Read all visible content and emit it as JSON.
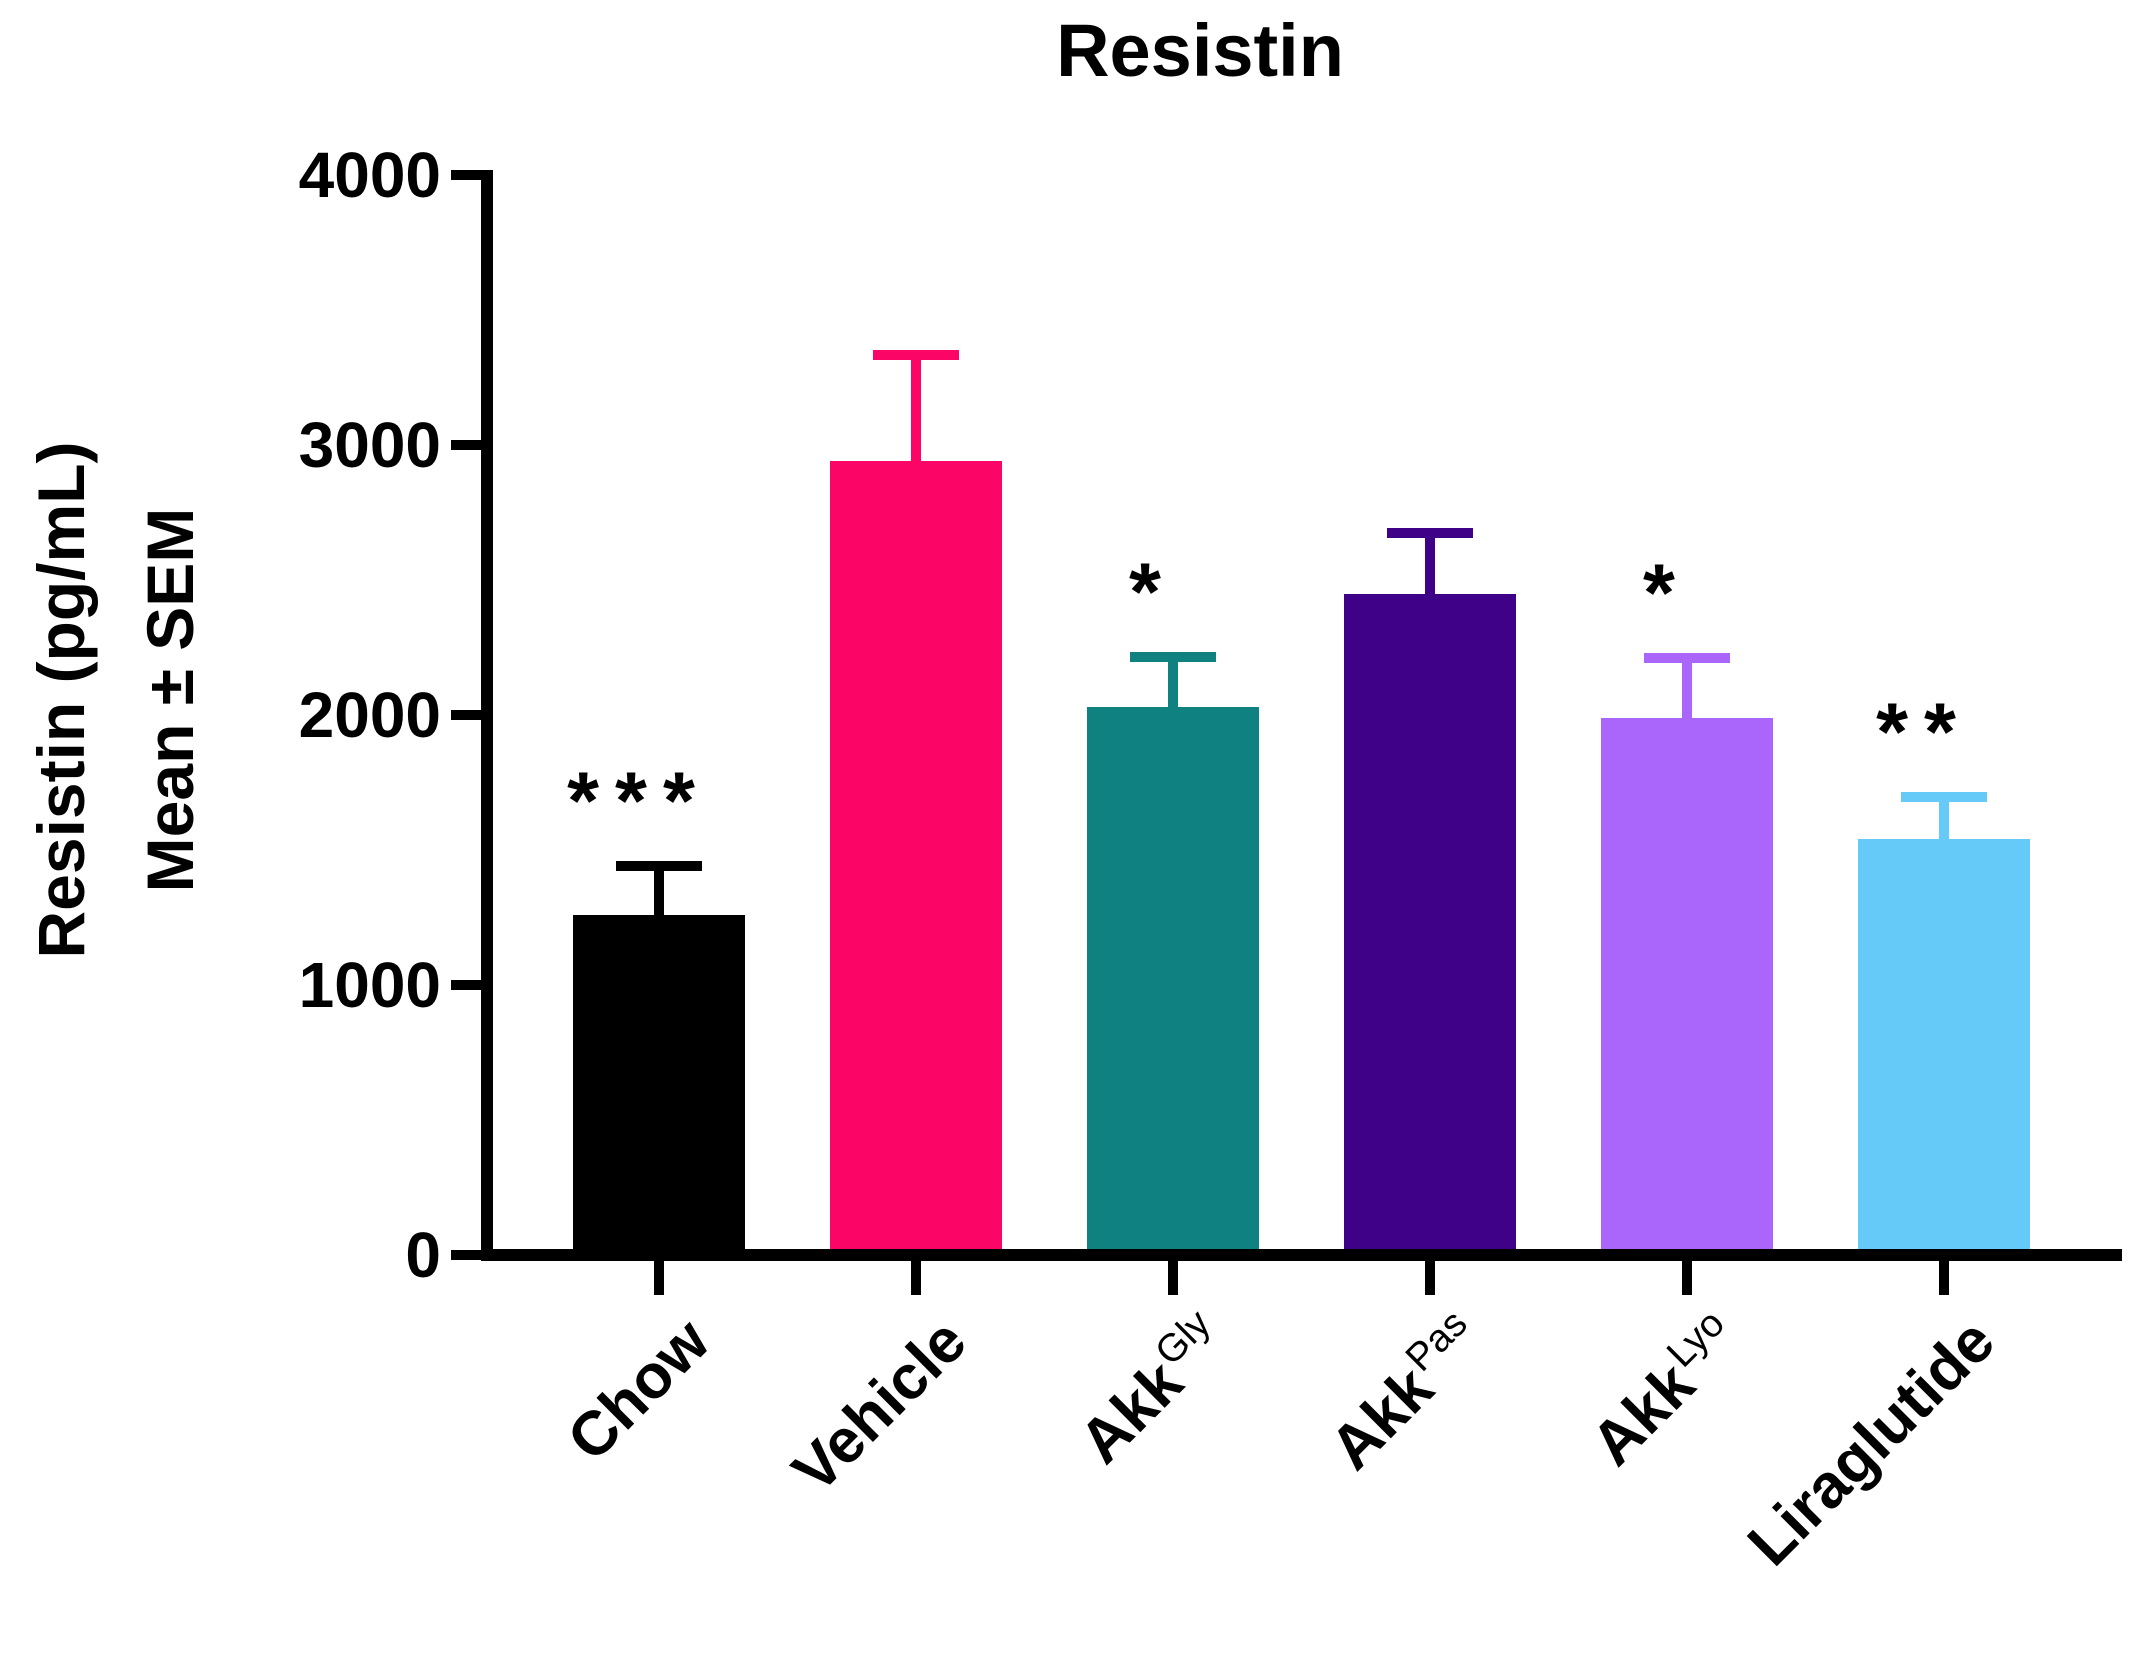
{
  "title": "Resistin",
  "y_axis": {
    "label_line1": "Resistin (pg/mL)",
    "label_line2": "Mean ± SEM"
  },
  "chart_data": {
    "type": "bar",
    "title": "Resistin",
    "ylabel": "Resistin (pg/mL) Mean ± SEM",
    "xlabel": "",
    "ylim": [
      0,
      4000
    ],
    "yticks": [
      0,
      1000,
      2000,
      3000,
      4000
    ],
    "grid": false,
    "legend": null,
    "error_bars": "SEM, upper side only, capped, same color as bar",
    "categories": [
      {
        "label": "Chow",
        "sup": ""
      },
      {
        "label": "Vehicle",
        "sup": ""
      },
      {
        "label": "Akk",
        "sup": "Gly"
      },
      {
        "label": "Akk",
        "sup": "Pas"
      },
      {
        "label": "Akk",
        "sup": "Lyo"
      },
      {
        "label": "Liraglutide",
        "sup": ""
      }
    ],
    "values": [
      1260,
      2940,
      2030,
      2450,
      1990,
      1540
    ],
    "sem": [
      180,
      395,
      185,
      225,
      220,
      155
    ],
    "significance": [
      "***",
      "",
      "*",
      "",
      "*",
      "**"
    ],
    "colors": [
      "#000000",
      "#FB0566",
      "#0F8180",
      "#400189",
      "#AA66FA",
      "#66CAF9"
    ]
  }
}
